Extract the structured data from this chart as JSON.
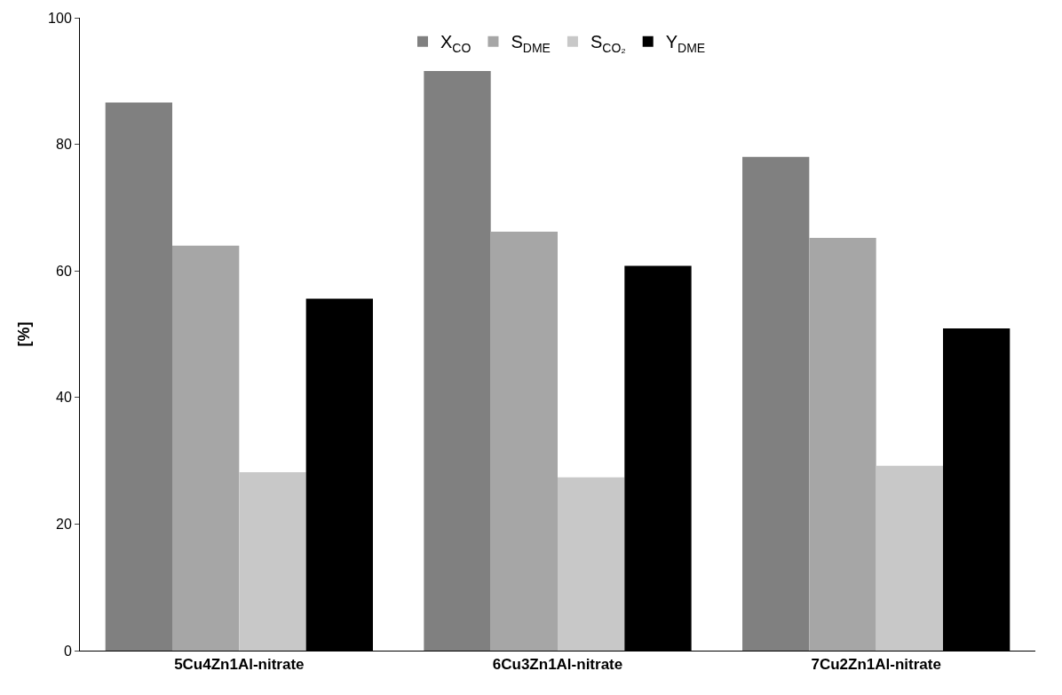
{
  "chart_data": {
    "type": "bar",
    "ylabel": "[%]",
    "categories": [
      "5Cu4Zn1Al-nitrate",
      "6Cu3Zn1Al-nitrate",
      "7Cu2Zn1Al-nitrate"
    ],
    "series": [
      {
        "name": "X$_{CO}$",
        "color": "#808080",
        "values": [
          86.6,
          91.6,
          78.0
        ]
      },
      {
        "name": "S$_{DME}$",
        "color": "#a6a6a6",
        "values": [
          64.0,
          66.2,
          65.2
        ]
      },
      {
        "name": "S$_{CO₂}$",
        "color": "#c8c8c8",
        "values": [
          28.2,
          27.4,
          29.2
        ]
      },
      {
        "name": "Y$_{DME}$",
        "color": "#000000",
        "values": [
          55.6,
          60.8,
          50.9
        ]
      }
    ],
    "ylim": [
      0,
      100
    ],
    "yticks": [
      0,
      20,
      40,
      60,
      80,
      100
    ],
    "grid": false,
    "legend": "top"
  }
}
